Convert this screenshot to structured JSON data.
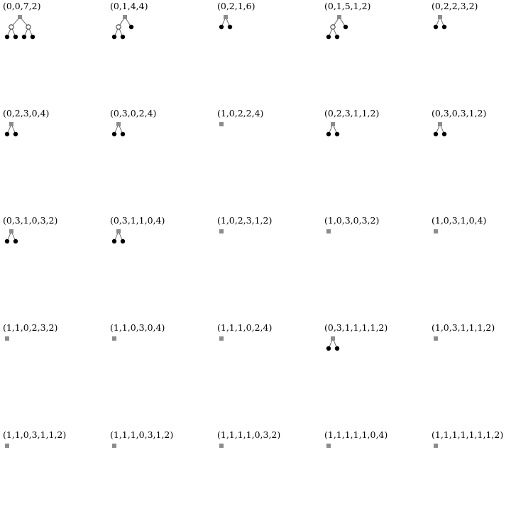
{
  "trees": [
    {
      "label": "(0,0,7,2)",
      "spine": [
        0,
        0,
        7,
        2
      ]
    },
    {
      "label": "(0,1,4,4)",
      "spine": [
        0,
        1,
        4,
        4
      ]
    },
    {
      "label": "(0,2,1,6)",
      "spine": [
        0,
        2,
        1,
        6
      ]
    },
    {
      "label": "(0,1,5,1,2)",
      "spine": [
        0,
        1,
        5,
        1,
        2
      ]
    },
    {
      "label": "(0,2,2,3,2)",
      "spine": [
        0,
        2,
        2,
        3,
        2
      ]
    },
    {
      "label": "(0,2,3,0,4)",
      "spine": [
        0,
        2,
        3,
        0,
        4
      ]
    },
    {
      "label": "(0,3,0,2,4)",
      "spine": [
        0,
        3,
        0,
        2,
        4
      ]
    },
    {
      "label": "(1,0,2,2,4)",
      "spine": [
        1,
        0,
        2,
        2,
        4
      ]
    },
    {
      "label": "(0,2,3,1,1,2)",
      "spine": [
        0,
        2,
        3,
        1,
        1,
        2
      ]
    },
    {
      "label": "(0,3,0,3,1,2)",
      "spine": [
        0,
        3,
        0,
        3,
        1,
        2
      ]
    },
    {
      "label": "(0,3,1,0,3,2)",
      "spine": [
        0,
        3,
        1,
        0,
        3,
        2
      ]
    },
    {
      "label": "(0,3,1,1,0,4)",
      "spine": [
        0,
        3,
        1,
        1,
        0,
        4
      ]
    },
    {
      "label": "(1,0,2,3,1,2)",
      "spine": [
        1,
        0,
        2,
        3,
        1,
        2
      ]
    },
    {
      "label": "(1,0,3,0,3,2)",
      "spine": [
        1,
        0,
        3,
        0,
        3,
        2
      ]
    },
    {
      "label": "(1,0,3,1,0,4)",
      "spine": [
        1,
        0,
        3,
        1,
        0,
        4
      ]
    },
    {
      "label": "(1,1,0,2,3,2)",
      "spine": [
        1,
        1,
        0,
        2,
        3,
        2
      ]
    },
    {
      "label": "(1,1,0,3,0,4)",
      "spine": [
        1,
        1,
        0,
        3,
        0,
        4
      ]
    },
    {
      "label": "(1,1,1,0,2,4)",
      "spine": [
        1,
        1,
        1,
        0,
        2,
        4
      ]
    },
    {
      "label": "(0,3,1,1,1,1,2)",
      "spine": [
        0,
        3,
        1,
        1,
        1,
        1,
        2
      ]
    },
    {
      "label": "(1,0,3,1,1,1,2)",
      "spine": [
        1,
        0,
        3,
        1,
        1,
        1,
        2
      ]
    },
    {
      "label": "(1,1,0,3,1,1,2)",
      "spine": [
        1,
        1,
        0,
        3,
        1,
        1,
        2
      ]
    },
    {
      "label": "(1,1,1,0,3,1,2)",
      "spine": [
        1,
        1,
        1,
        0,
        3,
        1,
        2
      ]
    },
    {
      "label": "(1,1,1,1,0,3,2)",
      "spine": [
        1,
        1,
        1,
        1,
        0,
        3,
        2
      ]
    },
    {
      "label": "(1,1,1,1,1,0,4)",
      "spine": [
        1,
        1,
        1,
        1,
        1,
        0,
        4
      ]
    },
    {
      "label": "(1,1,1,1,1,1,1,2)",
      "spine": [
        1,
        1,
        1,
        1,
        1,
        1,
        1,
        2
      ]
    }
  ],
  "colors": {
    "root": "#8c8c8c",
    "internal": "#ffffff",
    "leaf": "#000000",
    "edge": "#555555"
  }
}
